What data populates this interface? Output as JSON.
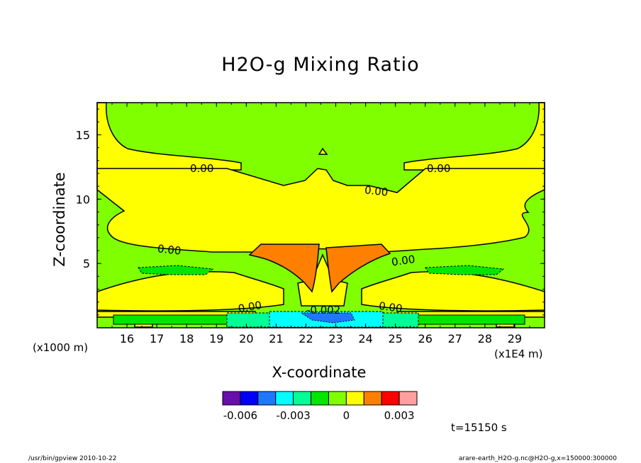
{
  "chart_data": {
    "type": "contour",
    "title": "H2O-g Mixing Ratio",
    "xlabel": "X-coordinate",
    "ylabel": "Z-coordinate",
    "x_unit_label": "(x1E4 m)",
    "y_unit_label": "(x1000 m)",
    "x_ticks": [
      "16",
      "17",
      "18",
      "19",
      "20",
      "21",
      "22",
      "23",
      "24",
      "25",
      "26",
      "27",
      "28",
      "29"
    ],
    "y_ticks": [
      "5",
      "10",
      "15"
    ],
    "xlim": [
      15,
      30
    ],
    "ylim": [
      0,
      17.5
    ],
    "contour_labels": [
      "0.00",
      "0.00",
      "0.00",
      "0.00",
      "0.00",
      "0.00",
      "0.00",
      "-0.002"
    ],
    "colorbar": {
      "tick_labels": [
        "-0.006",
        "-0.003",
        "0",
        "0.003"
      ],
      "tick_values": [
        -0.006,
        -0.003,
        0,
        0.003
      ],
      "levels": [
        -0.007,
        -0.006,
        -0.005,
        -0.004,
        -0.003,
        -0.002,
        -0.001,
        0,
        0.001,
        0.002,
        0.003,
        0.004
      ],
      "colors": [
        "#6a0dad",
        "#0000ff",
        "#1e78ff",
        "#00ffff",
        "#00ff96",
        "#00e600",
        "#80ff00",
        "#ffff00",
        "#ff7f00",
        "#ff0000",
        "#ffa0a0"
      ]
    },
    "time_label": "t=15150 s"
  },
  "footer": {
    "left": "/usr/bin/gpview   2010-10-22",
    "right": "arare-earth_H2O-g.nc@H2O-g,x=150000:300000"
  }
}
